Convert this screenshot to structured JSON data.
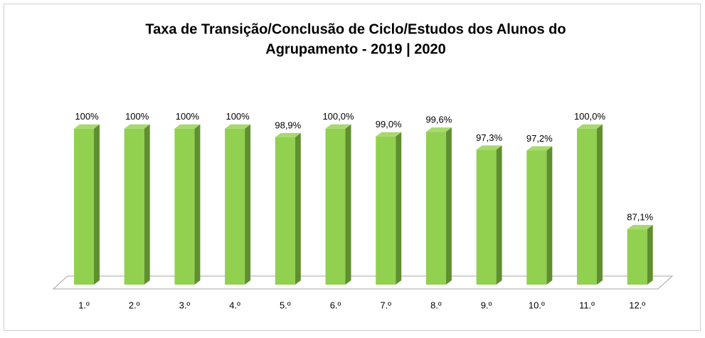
{
  "chart_data": {
    "type": "bar3d",
    "title_lines": [
      "Taxa de Transição/Conclusão de Ciclo/Estudos dos Alunos do",
      "Agrupamento  - 2019 | 2020"
    ],
    "categories": [
      "1.º",
      "2.º",
      "3.º",
      "4.º",
      "5.º",
      "6.º",
      "7.º",
      "8.º",
      "9.º",
      "10.º",
      "11.º",
      "12.º"
    ],
    "values": [
      100,
      100,
      100,
      100,
      98.9,
      100,
      99.0,
      99.6,
      97.3,
      97.2,
      100,
      87.1
    ],
    "value_labels": [
      "100%",
      "100%",
      "100%",
      "100%",
      "98,9%",
      "100,0%",
      "99,0%",
      "99,6%",
      "97,3%",
      "97,2%",
      "100,0%",
      "87,1%"
    ],
    "color": "#92d050",
    "ylim": [
      80,
      105
    ]
  }
}
